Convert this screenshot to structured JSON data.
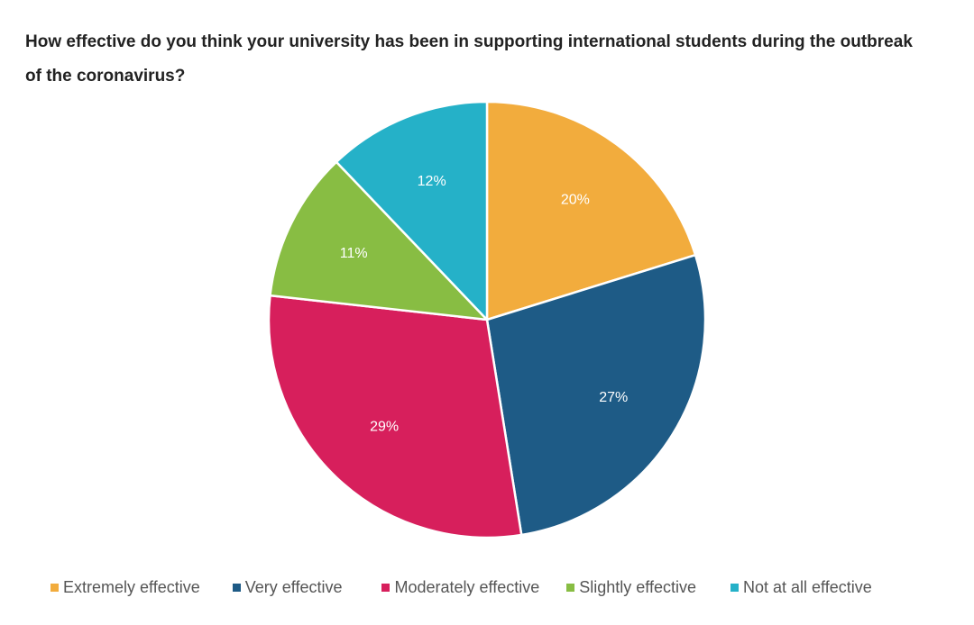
{
  "chart_data": {
    "type": "pie",
    "title": "How effective do you think your university has been in supporting international students during the outbreak of the coronavirus?",
    "slices": [
      {
        "label": "Extremely effective",
        "value": 20,
        "display": "20%",
        "color": "#F2AC3D"
      },
      {
        "label": "Very effective",
        "value": 27,
        "display": "27%",
        "color": "#1E5B86"
      },
      {
        "label": "Moderately effective",
        "value": 29,
        "display": "29%",
        "color": "#D71F5C"
      },
      {
        "label": "Slightly effective",
        "value": 11,
        "display": "11%",
        "color": "#88BD43"
      },
      {
        "label": "Not at all effective",
        "value": 12,
        "display": "12%",
        "color": "#25B1C8"
      }
    ],
    "legend_position": "bottom"
  }
}
